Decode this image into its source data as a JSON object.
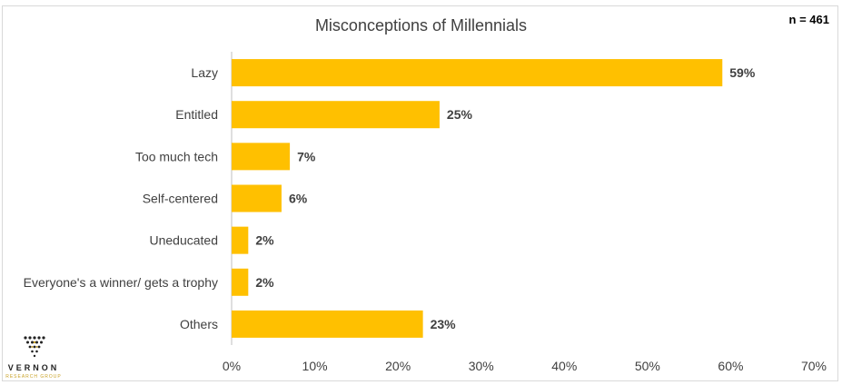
{
  "chart_data": {
    "type": "bar",
    "orientation": "horizontal",
    "title": "Misconceptions of Millennials",
    "annotation": "n = 461",
    "categories": [
      "Lazy",
      "Entitled",
      "Too much tech",
      "Self-centered",
      "Uneducated",
      "Everyone's a winner/ gets a trophy",
      "Others"
    ],
    "values": [
      59,
      25,
      7,
      6,
      2,
      2,
      23
    ],
    "value_labels": [
      "59%",
      "25%",
      "7%",
      "6%",
      "2%",
      "2%",
      "23%"
    ],
    "xlim": [
      0,
      70
    ],
    "xticks": [
      0,
      10,
      20,
      30,
      40,
      50,
      60,
      70
    ],
    "xtick_labels": [
      "0%",
      "10%",
      "20%",
      "30%",
      "40%",
      "50%",
      "60%",
      "70%"
    ],
    "bar_color": "#FFC000",
    "grid": false,
    "legend": "none"
  },
  "logo": {
    "word": "VERNON",
    "subtitle": "RESEARCH GROUP"
  }
}
